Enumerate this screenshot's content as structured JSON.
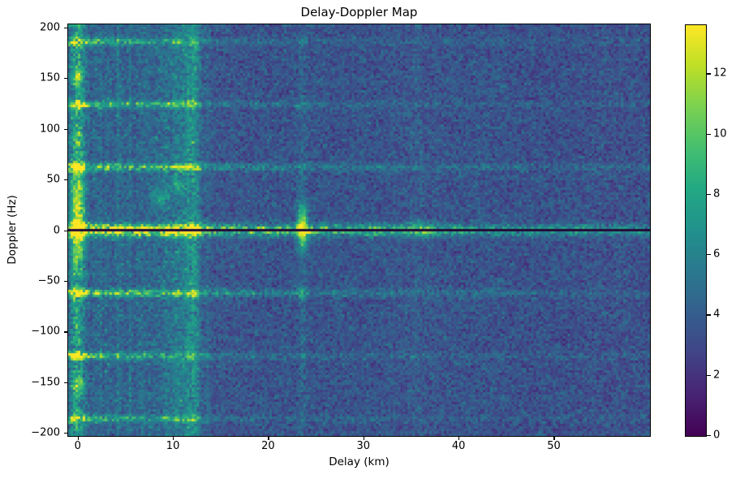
{
  "chart_data": {
    "type": "heatmap",
    "title": "Delay-Doppler Map",
    "xlabel": "Delay (km)",
    "ylabel": "Doppler (Hz)",
    "x_range": [
      -1.0,
      60.1
    ],
    "y_range": [
      -203,
      203
    ],
    "x_ticks": [
      0,
      10,
      20,
      30,
      40,
      50
    ],
    "y_ticks": [
      200,
      150,
      100,
      50,
      0,
      -50,
      -100,
      -150,
      -200
    ],
    "grid": false,
    "colormap": "viridis",
    "colormap_stops": [
      "#440154",
      "#482475",
      "#414487",
      "#355f8d",
      "#2a788e",
      "#21918c",
      "#22a884",
      "#44bf70",
      "#7ad151",
      "#bddf26",
      "#fde725"
    ],
    "vmin": 0,
    "vmax": 13.6,
    "colorbar_ticks": [
      0,
      2,
      4,
      6,
      8,
      10,
      12
    ],
    "resolution": {
      "cols": 240,
      "rows": 169
    },
    "noise": {
      "seed": 7,
      "mean": 3.55,
      "std": 0.95,
      "left_region_max_km": 14,
      "left_boost": 0.4,
      "right_region_min_km": 45,
      "right_damp": -0.15,
      "speckle_prob": 0.05,
      "speckle_amp": 2.2,
      "column_streak_prob": 0.25,
      "column_streak_amp": 0.8
    },
    "features": {
      "cross_gain": 0.35,
      "zero_doppler_notch": {
        "doppler": 0,
        "half_width_hz": 1.3,
        "value": 0.6
      },
      "doppler_lines": [
        {
          "doppler": 0,
          "amp": 6.5,
          "tau_km": 45,
          "floor": 1.2,
          "sigma_hz": 4.0
        },
        {
          "doppler": 62,
          "amp": 4.2,
          "tau_km": 18,
          "floor": 0.7,
          "sigma_hz": 2.6
        },
        {
          "doppler": -62,
          "amp": 4.2,
          "tau_km": 18,
          "floor": 0.7,
          "sigma_hz": 2.6
        },
        {
          "doppler": 124,
          "amp": 3.8,
          "tau_km": 13,
          "floor": 0.5,
          "sigma_hz": 2.4
        },
        {
          "doppler": -124,
          "amp": 3.8,
          "tau_km": 13,
          "floor": 0.5,
          "sigma_hz": 2.4
        },
        {
          "doppler": 186,
          "amp": 3.6,
          "tau_km": 11,
          "floor": 0.45,
          "sigma_hz": 2.4
        },
        {
          "doppler": -186,
          "amp": 3.6,
          "tau_km": 11,
          "floor": 0.45,
          "sigma_hz": 2.4
        }
      ],
      "delay_lines": [
        {
          "delay": 0,
          "amp": 3.4,
          "width_km": 0.55
        },
        {
          "delay": 2.1,
          "amp": 0.5,
          "width_km": 0.3
        },
        {
          "delay": 3.2,
          "amp": 0.4,
          "width_km": 0.3
        },
        {
          "delay": 4.3,
          "amp": 0.5,
          "width_km": 0.3
        },
        {
          "delay": 5.4,
          "amp": 0.45,
          "width_km": 0.3
        },
        {
          "delay": 6.6,
          "amp": 0.6,
          "width_km": 0.3
        },
        {
          "delay": 7.4,
          "amp": 0.5,
          "width_km": 0.3
        },
        {
          "delay": 8.3,
          "amp": 0.55,
          "width_km": 0.3
        },
        {
          "delay": 9.3,
          "amp": 1.1,
          "width_km": 0.35
        },
        {
          "delay": 10.4,
          "amp": 1.5,
          "width_km": 0.4
        },
        {
          "delay": 11.2,
          "amp": 1.0,
          "width_km": 0.3
        },
        {
          "delay": 11.9,
          "amp": 1.9,
          "width_km": 0.45
        },
        {
          "delay": 12.5,
          "amp": 1.2,
          "width_km": 0.3
        },
        {
          "delay": 23.6,
          "amp": 0.8,
          "width_km": 0.3
        },
        {
          "delay": 35.5,
          "amp": 0.3,
          "width_km": 0.4
        }
      ],
      "blobs": [
        {
          "delay": 0,
          "doppler": 28,
          "amp": 4.5,
          "sx_km": 0.5,
          "sy_hz": 26
        },
        {
          "delay": 0,
          "doppler": -15,
          "amp": 3.0,
          "sx_km": 0.5,
          "sy_hz": 18
        },
        {
          "delay": 0,
          "doppler": 152,
          "amp": 4.5,
          "sx_km": 0.45,
          "sy_hz": 5
        },
        {
          "delay": 0,
          "doppler": -152,
          "amp": 4.0,
          "sx_km": 0.45,
          "sy_hz": 5
        },
        {
          "delay": 0,
          "doppler": 90,
          "amp": 2.0,
          "sx_km": 0.45,
          "sy_hz": 5
        },
        {
          "delay": 23.6,
          "doppler": 10,
          "amp": 6.0,
          "sx_km": 0.4,
          "sy_hz": 11
        },
        {
          "delay": 23.6,
          "doppler": -10,
          "amp": 4.5,
          "sx_km": 0.4,
          "sy_hz": 9
        },
        {
          "delay": 23.6,
          "doppler": -62,
          "amp": 2.0,
          "sx_km": 0.4,
          "sy_hz": 5
        },
        {
          "delay": 8.6,
          "doppler": 32,
          "amp": 3.5,
          "sx_km": 0.5,
          "sy_hz": 6
        },
        {
          "delay": 10.4,
          "doppler": 46,
          "amp": 3.0,
          "sx_km": 0.4,
          "sy_hz": 5
        },
        {
          "delay": 36,
          "doppler": 0,
          "amp": 2.0,
          "sx_km": 1.2,
          "sy_hz": 6
        },
        {
          "delay": 31,
          "doppler": 0,
          "amp": 1.5,
          "sx_km": 0.8,
          "sy_hz": 5
        }
      ],
      "zero_doppler_overlay_line": {
        "color": "#03030a",
        "thickness_px": 1.6
      }
    }
  }
}
